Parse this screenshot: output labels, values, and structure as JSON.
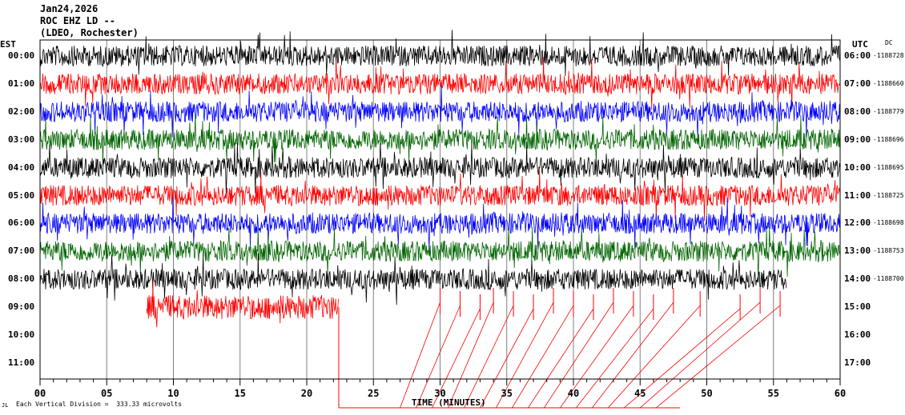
{
  "header": {
    "date": "Jan24,2026",
    "station": "ROC EHZ LD --",
    "location": "(LDEO, Rochester)"
  },
  "left_zone": "EST",
  "right_zone": "UTC",
  "dc_label": "DC",
  "footer": {
    "corner_mark": "JL",
    "scale_note": "Each Vertical Division =  333.33 microvolts"
  },
  "colors": {
    "grid": "#808080",
    "cycle": [
      "#000000",
      "#ff0000",
      "#0000ff",
      "#006400"
    ]
  },
  "chart_data": {
    "type": "line",
    "title": "",
    "xlabel": "TIME (MINUTES)",
    "xlim": [
      0,
      60
    ],
    "x_ticks": [
      "00",
      "05",
      "10",
      "15",
      "20",
      "25",
      "30",
      "35",
      "40",
      "45",
      "50",
      "55",
      "60"
    ],
    "rows": [
      {
        "est": "00:00",
        "utc": "06:00",
        "dc": "-1188728",
        "color": "black",
        "end_minute": 60
      },
      {
        "est": "01:00",
        "utc": "07:00",
        "dc": "-1188660",
        "color": "red",
        "end_minute": 60
      },
      {
        "est": "02:00",
        "utc": "08:00",
        "dc": "-1188779",
        "color": "blue",
        "end_minute": 60
      },
      {
        "est": "03:00",
        "utc": "09:00",
        "dc": "-1188696",
        "color": "green",
        "end_minute": 60
      },
      {
        "est": "04:00",
        "utc": "10:00",
        "dc": "-1188695",
        "color": "black",
        "end_minute": 60
      },
      {
        "est": "05:00",
        "utc": "11:00",
        "dc": "-1188725",
        "color": "red",
        "end_minute": 60
      },
      {
        "est": "06:00",
        "utc": "12:00",
        "dc": "-1188698",
        "color": "blue",
        "end_minute": 60
      },
      {
        "est": "07:00",
        "utc": "13:00",
        "dc": "-1188753",
        "color": "green",
        "end_minute": 60
      },
      {
        "est": "08:00",
        "utc": "14:00",
        "dc": "-1188700",
        "color": "black",
        "end_minute": 56
      },
      {
        "est": "09:00",
        "utc": "15:00",
        "dc": "",
        "color": "red",
        "end_minute": 22.4
      },
      {
        "est": "10:00",
        "utc": "16:00",
        "dc": "",
        "color": "",
        "end_minute": 0
      },
      {
        "est": "11:00",
        "utc": "17:00",
        "dc": "",
        "color": "",
        "end_minute": 0
      }
    ]
  }
}
